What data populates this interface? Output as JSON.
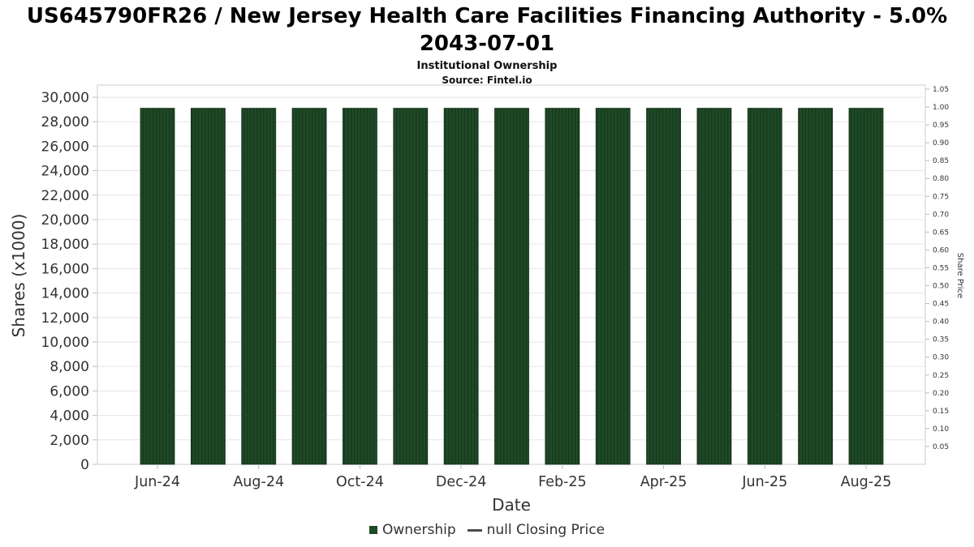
{
  "header": {
    "title": "US645790FR26 / New Jersey Health Care Facilities Financing Authority - 5.0% 2043-07-01",
    "subtitle": "Institutional Ownership",
    "source": "Source: Fintel.io"
  },
  "chart_data": {
    "type": "bar",
    "title": "US645790FR26 / New Jersey Health Care Facilities Financing Authority - 5.0% 2043-07-01",
    "subtitle": "Institutional Ownership",
    "source": "Source: Fintel.io",
    "xlabel": "Date",
    "ylabel": "Shares (x1000)",
    "y2label": "Share Price",
    "categories": [
      "Jun-24",
      "Jul-24",
      "Aug-24",
      "Sep-24",
      "Oct-24",
      "Nov-24",
      "Dec-24",
      "Jan-25",
      "Feb-25",
      "Mar-25",
      "Apr-25",
      "May-25",
      "Jun-25",
      "Jul-25",
      "Aug-25"
    ],
    "x_tick_labels": [
      "Jun-24",
      "Aug-24",
      "Oct-24",
      "Dec-24",
      "Feb-25",
      "Apr-25",
      "Jun-25",
      "Aug-25"
    ],
    "series": [
      {
        "name": "Ownership",
        "values": [
          29100,
          29100,
          29100,
          29100,
          29100,
          29100,
          29100,
          29100,
          29100,
          29100,
          29100,
          29100,
          29100,
          29100,
          29100
        ]
      }
    ],
    "second_series_name": "null Closing Price",
    "ylim": [
      0,
      30000
    ],
    "y_ticks": [
      0,
      2000,
      4000,
      6000,
      8000,
      10000,
      12000,
      14000,
      16000,
      18000,
      20000,
      22000,
      24000,
      26000,
      28000,
      30000
    ],
    "y2lim": [
      0,
      1.05
    ],
    "y2_ticks": [
      0.05,
      0.1,
      0.15,
      0.2,
      0.25,
      0.3,
      0.35,
      0.4,
      0.45,
      0.5,
      0.55,
      0.6,
      0.65,
      0.7,
      0.75,
      0.8,
      0.85,
      0.9,
      0.95,
      1.0,
      1.05
    ],
    "grid": true,
    "legend_position": "bottom"
  },
  "legend": [
    {
      "label": "Ownership",
      "marker": "square",
      "color": "#1e4a26"
    },
    {
      "label": "null Closing Price",
      "marker": "line",
      "color": "#4d4d4d"
    }
  ],
  "colors": {
    "bar": "#1e4a26",
    "bar_stripe": "#17391d",
    "bar_edge": "#142f18",
    "grid": "#e5e5e5",
    "plot_border": "#cccccc",
    "tick": "#bbbbbb",
    "tick_text": "#333333",
    "axis_title": "#333333"
  }
}
